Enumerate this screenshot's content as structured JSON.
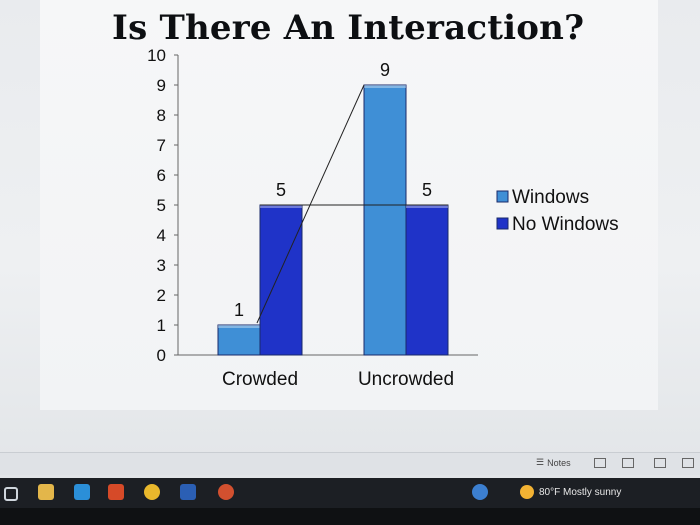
{
  "chart_data": {
    "type": "bar",
    "title": "Is There An Interaction?",
    "categories": [
      "Crowded",
      "Uncrowded"
    ],
    "series": [
      {
        "name": "Windows",
        "values": [
          1,
          9
        ],
        "color": "#3f8fd6"
      },
      {
        "name": "No Windows",
        "values": [
          5,
          5
        ],
        "color": "#1f33c8"
      }
    ],
    "ylim": [
      0,
      10
    ],
    "yticks": [
      0,
      1,
      2,
      3,
      4,
      5,
      6,
      7,
      8,
      9,
      10
    ],
    "data_labels": true,
    "legend_position": "right",
    "grid": false,
    "annotations": "lines connecting the Windows values and the No Windows values across conditions"
  },
  "statusbar": {
    "notes_label": "Notes"
  },
  "taskbar": {
    "weather_text": "80°F  Mostly sunny",
    "apps": [
      "start-icon",
      "file-explorer-icon",
      "store-icon",
      "office-icon",
      "chrome-icon",
      "word-icon",
      "powerpoint-icon",
      "help-icon"
    ]
  }
}
